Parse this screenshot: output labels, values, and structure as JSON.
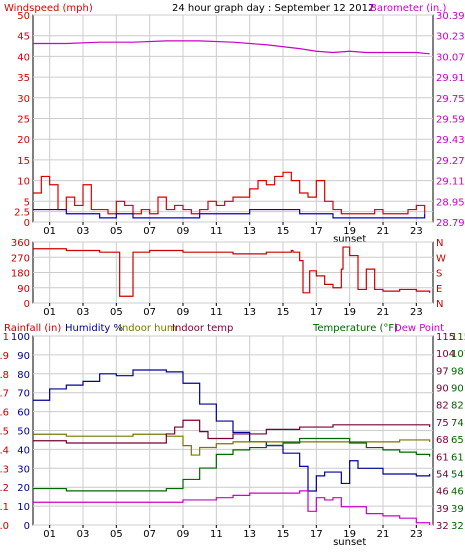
{
  "colors": {
    "wind": "#dd0000",
    "wind_avg": "#0000cc",
    "baro": "#cc00cc",
    "winddir": "#cc0000",
    "rain": "#cc0000",
    "humidity": "#000099",
    "indoor_hum": "#777700",
    "indoor_temp": "#770033",
    "temperature": "#006600",
    "dew_point": "#cc00cc",
    "grid": "#cccccc"
  },
  "chart_data": [
    {
      "type": "line",
      "labels": {
        "left": "Windspeed (mph)",
        "title": "24 hour graph day : September 12 2012",
        "right": "Barometer (in.)"
      },
      "x_ticks": [
        "01",
        "03",
        "05",
        "07",
        "09",
        "11",
        "13",
        "15",
        "17",
        "19",
        "21",
        "23"
      ],
      "x_marker": "sunset",
      "x_range": [
        0,
        24
      ],
      "y_left": {
        "range": [
          0,
          50
        ],
        "ticks": [
          "0",
          "2.5",
          "5",
          "10",
          "15",
          "20",
          "25",
          "30",
          "35",
          "40",
          "45",
          "50"
        ]
      },
      "y_right": {
        "range": [
          28.79,
          30.39
        ],
        "ticks": [
          "28.79",
          "28.95",
          "29.11",
          "29.27",
          "29.43",
          "29.59",
          "29.75",
          "29.91",
          "30.07",
          "30.23",
          "30.39"
        ]
      },
      "series": [
        {
          "axis": "left",
          "color_key": "wind",
          "x": [
            0,
            0.5,
            1,
            1.5,
            2,
            2.5,
            3,
            3.5,
            4,
            4.5,
            5,
            5.5,
            6,
            6.5,
            7,
            7.5,
            8,
            8.5,
            9,
            9.5,
            10,
            10.5,
            11,
            11.5,
            12,
            12.5,
            13,
            13.5,
            14,
            14.5,
            15,
            15.5,
            16,
            16.5,
            17,
            17.5,
            18,
            18.5,
            19,
            19.5,
            20,
            20.5,
            21,
            21.5,
            22,
            22.5,
            23,
            23.5
          ],
          "y": [
            7,
            11,
            9,
            3,
            6,
            4,
            9,
            3,
            3,
            2,
            5,
            4,
            2,
            3,
            2,
            6,
            3,
            4,
            3,
            2,
            3,
            5,
            4,
            5,
            6,
            6,
            8,
            10,
            9,
            11,
            12,
            10,
            7,
            6,
            10,
            5,
            3,
            2,
            2,
            2,
            2,
            3,
            2,
            2,
            2,
            3,
            4,
            2
          ]
        },
        {
          "axis": "left",
          "color_key": "wind_avg",
          "x": [
            0,
            1,
            2,
            3,
            4,
            5,
            6,
            7,
            8,
            9,
            10,
            11,
            12,
            13,
            14,
            15,
            16,
            17,
            18,
            19,
            20,
            21,
            22,
            23,
            23.5
          ],
          "y": [
            3,
            3,
            2,
            2,
            1,
            2,
            1,
            1,
            1,
            1,
            2,
            2,
            2,
            3,
            3,
            3,
            2,
            2,
            1,
            1,
            1,
            1,
            1,
            1,
            2
          ]
        },
        {
          "axis": "right",
          "color_key": "baro",
          "x": [
            0,
            2,
            4,
            6,
            8,
            10,
            12,
            14,
            16,
            17,
            18,
            19,
            20,
            21,
            22,
            23,
            23.8
          ],
          "y": [
            30.17,
            30.17,
            30.18,
            30.18,
            30.19,
            30.19,
            30.18,
            30.16,
            30.13,
            30.11,
            30.1,
            30.11,
            30.1,
            30.1,
            30.1,
            30.1,
            30.09
          ]
        }
      ]
    },
    {
      "type": "line",
      "y_left": {
        "range": [
          0,
          360
        ],
        "ticks": [
          "0",
          "90",
          "180",
          "270",
          "360"
        ]
      },
      "y_right_labels": [
        "N",
        "E",
        "S",
        "W",
        "N"
      ],
      "series": [
        {
          "color_key": "winddir",
          "x": [
            0,
            2,
            4,
            5,
            5.2,
            5.9,
            6,
            6.5,
            7,
            9,
            11,
            12,
            14,
            15.5,
            15.6,
            16,
            16.2,
            16.6,
            17,
            17.5,
            18,
            18.5,
            18.6,
            19,
            19.5,
            20,
            20.5,
            21,
            22,
            23,
            23.8
          ],
          "y": [
            320,
            310,
            300,
            300,
            40,
            40,
            300,
            300,
            310,
            300,
            300,
            290,
            300,
            310,
            300,
            250,
            60,
            190,
            160,
            110,
            90,
            200,
            330,
            280,
            80,
            200,
            80,
            70,
            80,
            70,
            60
          ]
        }
      ]
    },
    {
      "type": "line",
      "labels": {
        "rainfall": "Rainfall (in)",
        "humidity": "Humidity %",
        "indoor_hum": "Indoor hum",
        "indoor_temp": "Indoor temp",
        "temperature": "Temperature (°F)",
        "dew_point": "Dew Point"
      },
      "y_rain": {
        "range": [
          0,
          1
        ],
        "ticks": [
          "0.0",
          "0.1",
          "0.2",
          "0.3",
          "0.4",
          "0.5",
          "0.6",
          "0.7",
          "0.8",
          "0.9",
          "1"
        ]
      },
      "y_hum": {
        "range": [
          0,
          100
        ],
        "ticks": [
          "0",
          "10",
          "20",
          "30",
          "40",
          "50",
          "60",
          "70",
          "80",
          "90",
          "100"
        ]
      },
      "y_temp_a": {
        "range": [
          32,
          115
        ],
        "ticks": [
          "32",
          "39",
          "46",
          "54",
          "61",
          "68",
          "75",
          "82",
          "90",
          "97",
          "104",
          "115"
        ]
      },
      "y_temp_b": {
        "range": [
          32,
          115
        ],
        "ticks": [
          "32",
          "39",
          "46",
          "54",
          "61",
          "65",
          "74",
          "82",
          "90",
          "98",
          "107",
          "115"
        ]
      },
      "series": [
        {
          "name": "Humidity %",
          "axis": "hum",
          "color_key": "humidity",
          "x": [
            0,
            1,
            2,
            3,
            4,
            5,
            6,
            7,
            8,
            9,
            10,
            11,
            12,
            13,
            14,
            15,
            16,
            16.5,
            17,
            17.5,
            18,
            18.5,
            19,
            19.5,
            20,
            21,
            22,
            23,
            23.8
          ],
          "y": [
            66,
            72,
            74,
            76,
            80,
            79,
            82,
            82,
            81,
            75,
            64,
            55,
            49,
            44,
            42,
            38,
            31,
            18,
            26,
            28,
            28,
            22,
            34,
            30,
            30,
            27,
            27,
            26,
            27
          ]
        },
        {
          "name": "Indoor hum",
          "axis": "hum",
          "color_key": "indoor_hum",
          "x": [
            0,
            2,
            4,
            6,
            8,
            9,
            9.5,
            10,
            11,
            12,
            14,
            16,
            18,
            20,
            22,
            23.8
          ],
          "y": [
            48,
            47,
            47,
            48,
            47,
            42,
            37,
            41,
            43,
            44,
            44,
            44,
            44,
            44,
            45,
            44
          ]
        },
        {
          "name": "Indoor temp",
          "axis": "temp",
          "color_key": "indoor_temp",
          "x": [
            0,
            2,
            4,
            6,
            8,
            8.5,
            9,
            10,
            10.5,
            11,
            12,
            14,
            16,
            18,
            20,
            22,
            23.8
          ],
          "y": [
            69,
            68,
            68,
            68,
            72,
            75,
            78,
            73,
            70,
            70,
            72,
            74,
            75,
            76,
            76,
            76,
            75
          ]
        },
        {
          "name": "Temperature (°F)",
          "axis": "temp",
          "color_key": "temperature",
          "x": [
            0,
            2,
            4,
            6,
            7,
            8,
            9,
            10,
            11,
            12,
            13,
            14,
            15,
            16,
            17,
            18,
            19,
            20,
            21,
            22,
            23,
            23.8
          ],
          "y": [
            48,
            47,
            47,
            47,
            47,
            48,
            52,
            57,
            63,
            65,
            66,
            67,
            68,
            70,
            70,
            70,
            68,
            66,
            65,
            64,
            63,
            62
          ]
        },
        {
          "name": "Dew Point",
          "axis": "temp",
          "color_key": "dew_point",
          "x": [
            0,
            2,
            4,
            6,
            8,
            9,
            10,
            11,
            12,
            13,
            14,
            15,
            16,
            16.5,
            17,
            17.5,
            18,
            18.5,
            19,
            20,
            21,
            22,
            23,
            23.8
          ],
          "y": [
            42,
            42,
            42,
            42,
            42,
            43,
            43,
            44,
            45,
            46,
            46,
            46,
            47,
            38,
            44,
            43,
            44,
            40,
            40,
            37,
            36,
            35,
            33,
            32
          ]
        }
      ]
    }
  ]
}
